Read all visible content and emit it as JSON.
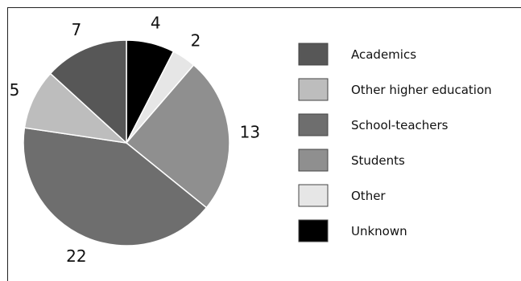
{
  "chart_data": {
    "type": "pie",
    "title": "",
    "legend_position": "right",
    "slices": [
      {
        "name": "Unknown",
        "value": 4,
        "color": "#000000"
      },
      {
        "name": "Other",
        "value": 2,
        "color": "#e6e6e6"
      },
      {
        "name": "Students",
        "value": 13,
        "color": "#8f8f8f"
      },
      {
        "name": "School-teachers",
        "value": 22,
        "color": "#6e6e6e"
      },
      {
        "name": "Other higher education",
        "value": 5,
        "color": "#bdbdbd"
      },
      {
        "name": "Academics",
        "value": 7,
        "color": "#575757"
      }
    ],
    "legend_order": [
      "Academics",
      "Other higher education",
      "School-teachers",
      "Students",
      "Other",
      "Unknown"
    ]
  }
}
